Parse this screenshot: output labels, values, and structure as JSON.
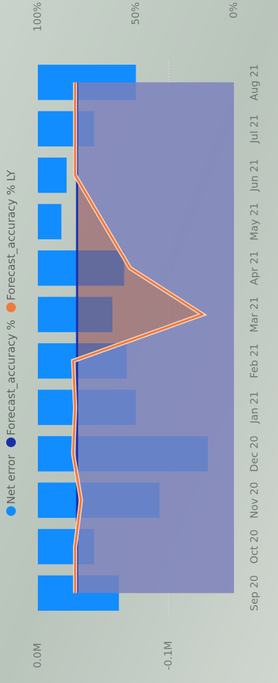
{
  "chart_data": {
    "type": "combo",
    "categories": [
      "Sep 20",
      "Oct 20",
      "Nov 20",
      "Dec 20",
      "Jan 21",
      "Feb 21",
      "Mar 21",
      "Apr 21",
      "May 21",
      "Jun 21",
      "Jul 21",
      "Aug 21"
    ],
    "series": [
      {
        "name": "Net error",
        "type": "bar",
        "color": "#118dff",
        "values": [
          -0.062,
          -0.043,
          -0.093,
          -0.13,
          -0.075,
          -0.068,
          -0.057,
          -0.066,
          -0.018,
          -0.022,
          -0.043,
          -0.075
        ]
      },
      {
        "name": "Forecast_accuracy %",
        "type": "line",
        "axis": "y2",
        "color": "#1a2fa8",
        "fill": "rgba(150,85,95,0.62)",
        "values": [
          80,
          80,
          80,
          80,
          80,
          80,
          80,
          80,
          80,
          80,
          80,
          80
        ]
      },
      {
        "name": "Forecast_accuracy % LY",
        "type": "line",
        "axis": "y2",
        "color": "#f07a3e",
        "fill": "rgba(110,150,235,0.55)",
        "values": [
          81,
          81,
          78,
          82,
          81,
          82,
          16,
          53,
          67,
          81,
          81,
          81
        ]
      }
    ],
    "ylim": [
      -0.15,
      0
    ],
    "yticks": [
      {
        "value": 0,
        "label": "0.0M"
      },
      {
        "value": -0.1,
        "label": "-0.1M"
      }
    ],
    "y2lim": [
      0,
      100
    ],
    "y2ticks": [
      {
        "value": 0,
        "label": "0%"
      },
      {
        "value": 50,
        "label": "50%"
      },
      {
        "value": 100,
        "label": "100%"
      }
    ],
    "grid": true
  }
}
